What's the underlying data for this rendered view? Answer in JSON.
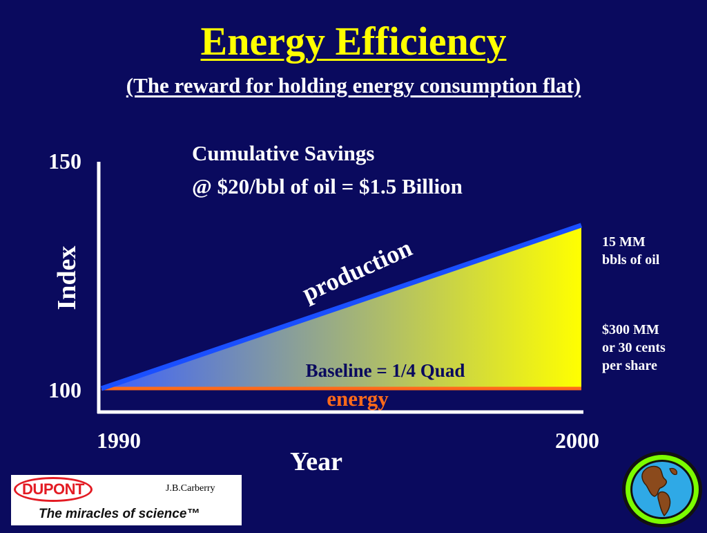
{
  "slide": {
    "title": "Energy Efficiency",
    "subtitle": "(The reward for holding energy consumption flat)"
  },
  "colors": {
    "background": "#0a0a5e",
    "title": "#ffff00",
    "production_line": "#1a4fff",
    "energy_line": "#ff6a1a",
    "fill_start": "#3b5fff",
    "fill_end": "#ffff00",
    "baseline_label": "#0a0a5e",
    "energy_label": "#ff6a1a"
  },
  "chart_data": {
    "type": "area",
    "x": [
      1990,
      2000
    ],
    "xlabel": "Year",
    "ylabel": "Index",
    "xtick_labels": [
      "1990",
      "2000"
    ],
    "ytick_labels": [
      "150",
      "100"
    ],
    "xlim": [
      1990,
      2000
    ],
    "ylim": [
      100,
      150
    ],
    "grid": false,
    "series": [
      {
        "name": "production",
        "values": [
          100,
          136
        ]
      },
      {
        "name": "energy",
        "values": [
          100,
          100
        ]
      }
    ],
    "annotations": {
      "savings_line1": "Cumulative Savings",
      "savings_line2": "@ $20/bbl of oil = $1.5 Billion",
      "baseline": "Baseline = 1/4 Quad",
      "production_label": "production",
      "energy_label": "energy"
    }
  },
  "side_notes": {
    "oil_line1": "15 MM",
    "oil_line2": "bbls of oil",
    "value_line1": "$300 MM",
    "value_line2": "or 30 cents",
    "value_line3": "per share"
  },
  "footer": {
    "brand": "DUPONT",
    "credit": "J.B.Carberry",
    "tagline": "The miracles of science™"
  },
  "icons": {
    "logo": "dupont-oval-logo",
    "globe": "globe-icon"
  }
}
